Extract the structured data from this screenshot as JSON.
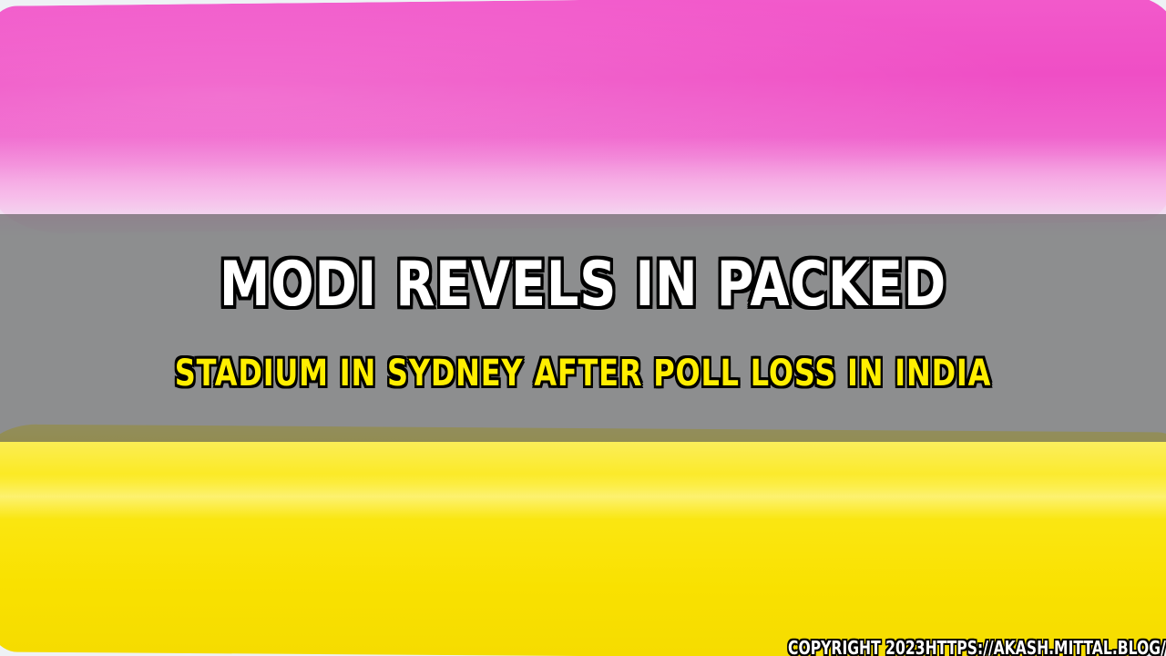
{
  "title": {
    "line1": "MODI REVELS IN PACKED",
    "line2": "STADIUM IN SYDNEY AFTER POLL LOSS IN INDIA"
  },
  "footer": {
    "copyright": "COPYRIGHT 2023HTTPS://AKASH.MITTAL.BLOG/"
  },
  "colors": {
    "pink_stroke": "#ef4ec5",
    "yellow_stroke": "#f9e100",
    "band_overlay": "#505050",
    "title_primary": "#ffffff",
    "title_secondary": "#ffee00",
    "text_outline": "#000000",
    "paper_background": "#eef2f5"
  }
}
